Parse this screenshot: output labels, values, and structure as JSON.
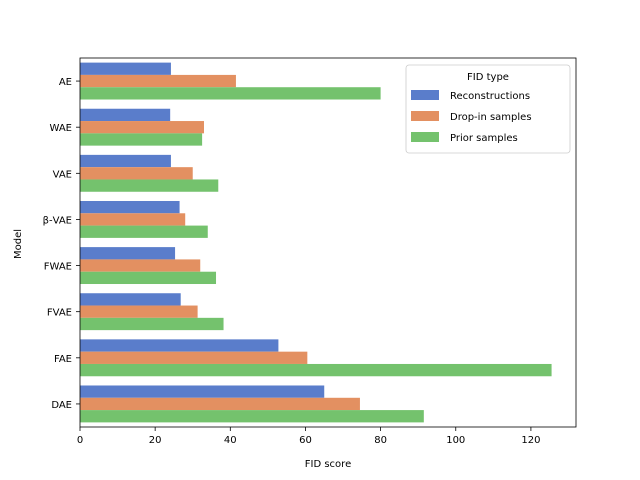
{
  "chart_data": {
    "type": "bar",
    "orientation": "horizontal",
    "title": "",
    "xlabel": "FID score",
    "ylabel": "Model",
    "xlim": [
      0,
      132
    ],
    "xticks": [
      0,
      20,
      40,
      60,
      80,
      100,
      120
    ],
    "grid": false,
    "legend_title": "FID type",
    "legend_position": "top-right",
    "categories": [
      "AE",
      "WAE",
      "VAE",
      "β-VAE",
      "FWAE",
      "FVAE",
      "FAE",
      "DAE"
    ],
    "series": [
      {
        "name": "Reconstructions",
        "color": "#5A7DCB",
        "values": [
          24.2,
          24.0,
          24.2,
          26.5,
          25.3,
          26.8,
          52.8,
          65.0
        ]
      },
      {
        "name": "Drop-in samples",
        "color": "#E39061",
        "values": [
          41.5,
          33.0,
          30.0,
          28.0,
          32.0,
          31.3,
          60.5,
          74.5
        ]
      },
      {
        "name": "Prior samples",
        "color": "#74C26D",
        "values": [
          80.0,
          32.5,
          36.8,
          34.0,
          36.2,
          38.2,
          125.5,
          91.5
        ]
      }
    ]
  }
}
